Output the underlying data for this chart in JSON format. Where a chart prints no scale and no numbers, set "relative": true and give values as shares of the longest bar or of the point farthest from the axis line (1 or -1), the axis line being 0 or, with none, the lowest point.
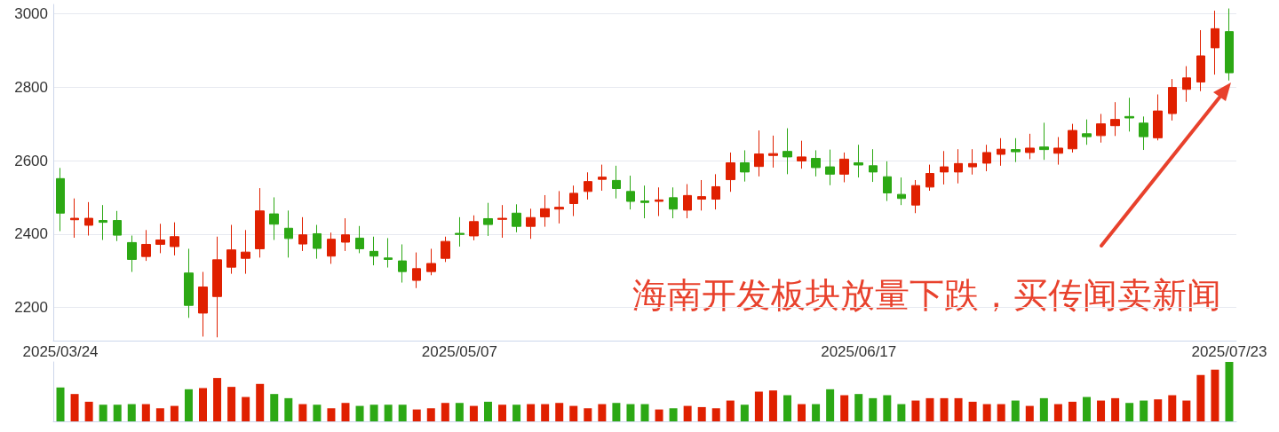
{
  "chart_data": [
    {
      "type": "candlestick",
      "categories": [
        "2025/03/24",
        null,
        null,
        null,
        null,
        null,
        null,
        null,
        null,
        null,
        null,
        null,
        null,
        null,
        null,
        null,
        null,
        null,
        null,
        null,
        null,
        null,
        null,
        null,
        null,
        null,
        null,
        null,
        "2025/05/07",
        null,
        null,
        null,
        null,
        null,
        null,
        null,
        null,
        null,
        null,
        null,
        null,
        null,
        null,
        null,
        null,
        null,
        null,
        null,
        null,
        null,
        null,
        null,
        null,
        null,
        null,
        null,
        "2025/06/17",
        null,
        null,
        null,
        null,
        null,
        null,
        null,
        null,
        null,
        null,
        null,
        null,
        null,
        null,
        null,
        null,
        null,
        null,
        null,
        null,
        null,
        null,
        null,
        null,
        null,
        "2025/07/23"
      ],
      "ohlc": [
        [
          2551,
          2580,
          2408,
          2457
        ],
        [
          2439,
          2497,
          2390,
          2443
        ],
        [
          2424,
          2487,
          2396,
          2443
        ],
        [
          2437,
          2479,
          2384,
          2432
        ],
        [
          2437,
          2463,
          2381,
          2397
        ],
        [
          2377,
          2396,
          2297,
          2331
        ],
        [
          2339,
          2411,
          2327,
          2372
        ],
        [
          2372,
          2428,
          2348,
          2384
        ],
        [
          2366,
          2432,
          2342,
          2393
        ],
        [
          2294,
          2360,
          2172,
          2206
        ],
        [
          2185,
          2297,
          2121,
          2256
        ],
        [
          2230,
          2393,
          2119,
          2330
        ],
        [
          2310,
          2425,
          2292,
          2357
        ],
        [
          2334,
          2411,
          2292,
          2351
        ],
        [
          2360,
          2525,
          2336,
          2463
        ],
        [
          2455,
          2500,
          2384,
          2427
        ],
        [
          2416,
          2464,
          2336,
          2388
        ],
        [
          2373,
          2446,
          2354,
          2398
        ],
        [
          2401,
          2425,
          2333,
          2361
        ],
        [
          2340,
          2404,
          2319,
          2386
        ],
        [
          2378,
          2443,
          2354,
          2398
        ],
        [
          2389,
          2422,
          2348,
          2360
        ],
        [
          2353,
          2393,
          2315,
          2340
        ],
        [
          2335,
          2389,
          2309,
          2331
        ],
        [
          2327,
          2372,
          2268,
          2298
        ],
        [
          2274,
          2350,
          2253,
          2306
        ],
        [
          2298,
          2360,
          2288,
          2320
        ],
        [
          2334,
          2393,
          2324,
          2380
        ],
        [
          2402,
          2446,
          2366,
          2399
        ],
        [
          2395,
          2451,
          2383,
          2434
        ],
        [
          2442,
          2485,
          2395,
          2426
        ],
        [
          2440,
          2479,
          2390,
          2443
        ],
        [
          2457,
          2481,
          2405,
          2421
        ],
        [
          2421,
          2469,
          2387,
          2445
        ],
        [
          2447,
          2506,
          2420,
          2469
        ],
        [
          2468,
          2517,
          2429,
          2473
        ],
        [
          2483,
          2532,
          2449,
          2511
        ],
        [
          2516,
          2568,
          2494,
          2543
        ],
        [
          2549,
          2589,
          2518,
          2555
        ],
        [
          2546,
          2586,
          2497,
          2524
        ],
        [
          2516,
          2559,
          2467,
          2489
        ],
        [
          2490,
          2532,
          2443,
          2486
        ],
        [
          2489,
          2527,
          2449,
          2493
        ],
        [
          2499,
          2527,
          2443,
          2468
        ],
        [
          2465,
          2536,
          2443,
          2505
        ],
        [
          2495,
          2547,
          2464,
          2502
        ],
        [
          2495,
          2563,
          2467,
          2529
        ],
        [
          2548,
          2622,
          2515,
          2594
        ],
        [
          2594,
          2628,
          2543,
          2569
        ],
        [
          2584,
          2682,
          2557,
          2618
        ],
        [
          2614,
          2668,
          2581,
          2619
        ],
        [
          2625,
          2688,
          2563,
          2610
        ],
        [
          2599,
          2654,
          2578,
          2610
        ],
        [
          2606,
          2628,
          2557,
          2581
        ],
        [
          2583,
          2630,
          2533,
          2563
        ],
        [
          2563,
          2622,
          2541,
          2604
        ],
        [
          2594,
          2643,
          2554,
          2588
        ],
        [
          2586,
          2631,
          2542,
          2569
        ],
        [
          2556,
          2598,
          2490,
          2512
        ],
        [
          2508,
          2554,
          2479,
          2497
        ],
        [
          2479,
          2547,
          2457,
          2532
        ],
        [
          2528,
          2589,
          2518,
          2565
        ],
        [
          2569,
          2626,
          2535,
          2583
        ],
        [
          2569,
          2631,
          2538,
          2592
        ],
        [
          2583,
          2631,
          2562,
          2592
        ],
        [
          2593,
          2643,
          2571,
          2622
        ],
        [
          2617,
          2661,
          2586,
          2631
        ],
        [
          2630,
          2661,
          2596,
          2624
        ],
        [
          2622,
          2673,
          2604,
          2634
        ],
        [
          2637,
          2703,
          2602,
          2630
        ],
        [
          2620,
          2664,
          2589,
          2634
        ],
        [
          2632,
          2700,
          2622,
          2682
        ],
        [
          2673,
          2712,
          2643,
          2665
        ],
        [
          2668,
          2727,
          2649,
          2700
        ],
        [
          2695,
          2759,
          2667,
          2712
        ],
        [
          2720,
          2771,
          2679,
          2716
        ],
        [
          2702,
          2720,
          2629,
          2665
        ],
        [
          2662,
          2780,
          2655,
          2735
        ],
        [
          2728,
          2822,
          2709,
          2799
        ],
        [
          2794,
          2857,
          2760,
          2825
        ],
        [
          2814,
          2955,
          2789,
          2885
        ],
        [
          2907,
          3008,
          2834,
          2959
        ],
        [
          2951,
          3014,
          2818,
          2839
        ]
      ],
      "colors": [
        "#2ca814",
        "#e02000",
        "#e02000",
        "#2ca814",
        "#2ca814",
        "#2ca814",
        "#e02000",
        "#e02000",
        "#e02000",
        "#2ca814",
        "#e02000",
        "#e02000",
        "#e02000",
        "#e02000",
        "#e02000",
        "#2ca814",
        "#2ca814",
        "#e02000",
        "#2ca814",
        "#e02000",
        "#e02000",
        "#2ca814",
        "#2ca814",
        "#2ca814",
        "#2ca814",
        "#e02000",
        "#e02000",
        "#e02000",
        "#2ca814",
        "#e02000",
        "#2ca814",
        "#e02000",
        "#2ca814",
        "#e02000",
        "#e02000",
        "#e02000",
        "#e02000",
        "#e02000",
        "#e02000",
        "#2ca814",
        "#2ca814",
        "#2ca814",
        "#e02000",
        "#2ca814",
        "#e02000",
        "#e02000",
        "#e02000",
        "#e02000",
        "#2ca814",
        "#e02000",
        "#e02000",
        "#2ca814",
        "#e02000",
        "#2ca814",
        "#2ca814",
        "#e02000",
        "#2ca814",
        "#2ca814",
        "#2ca814",
        "#2ca814",
        "#e02000",
        "#e02000",
        "#e02000",
        "#e02000",
        "#e02000",
        "#e02000",
        "#e02000",
        "#2ca814",
        "#e02000",
        "#2ca814",
        "#e02000",
        "#e02000",
        "#2ca814",
        "#e02000",
        "#e02000",
        "#2ca814",
        "#2ca814",
        "#e02000",
        "#e02000",
        "#e02000",
        "#e02000",
        "#e02000",
        "#2ca814"
      ],
      "ylim": [
        2110,
        3025
      ],
      "yticks": [
        2200,
        2400,
        2600,
        2800,
        3000
      ],
      "grid": "y",
      "annotations": [
        "海南开发板块放量下跌，买传闻卖新闻"
      ]
    },
    {
      "type": "bar",
      "relative": true,
      "categories": [
        null,
        null,
        null,
        null,
        null,
        null,
        null,
        null,
        null,
        null,
        null,
        null,
        null,
        null,
        null,
        null,
        null,
        null,
        null,
        null,
        null,
        null,
        null,
        null,
        null,
        null,
        null,
        null,
        null,
        null,
        null,
        null,
        null,
        null,
        null,
        null,
        null,
        null,
        null,
        null,
        null,
        null,
        null,
        null,
        null,
        null,
        null,
        null,
        null,
        null,
        null,
        null,
        null,
        null,
        null,
        null,
        null,
        null,
        null,
        null,
        null,
        null,
        null,
        null,
        null,
        null,
        null,
        null,
        null,
        null,
        null,
        null,
        null,
        null,
        null,
        null,
        null,
        null,
        null,
        null,
        null,
        null,
        null
      ],
      "values": [
        0.57,
        0.46,
        0.33,
        0.28,
        0.28,
        0.29,
        0.29,
        0.22,
        0.26,
        0.54,
        0.56,
        0.73,
        0.58,
        0.41,
        0.63,
        0.46,
        0.39,
        0.29,
        0.28,
        0.22,
        0.31,
        0.26,
        0.28,
        0.28,
        0.28,
        0.2,
        0.22,
        0.31,
        0.31,
        0.26,
        0.33,
        0.28,
        0.28,
        0.29,
        0.29,
        0.31,
        0.26,
        0.22,
        0.29,
        0.31,
        0.29,
        0.29,
        0.2,
        0.22,
        0.26,
        0.24,
        0.22,
        0.35,
        0.28,
        0.5,
        0.52,
        0.44,
        0.29,
        0.29,
        0.54,
        0.44,
        0.46,
        0.39,
        0.44,
        0.29,
        0.35,
        0.39,
        0.39,
        0.39,
        0.33,
        0.29,
        0.29,
        0.35,
        0.26,
        0.39,
        0.29,
        0.33,
        0.41,
        0.35,
        0.39,
        0.31,
        0.35,
        0.37,
        0.44,
        0.35,
        0.78,
        0.87,
        1
      ],
      "colors": [
        "#2ca814",
        "#e02000",
        "#e02000",
        "#2ca814",
        "#2ca814",
        "#2ca814",
        "#e02000",
        "#e02000",
        "#e02000",
        "#2ca814",
        "#e02000",
        "#e02000",
        "#e02000",
        "#e02000",
        "#e02000",
        "#2ca814",
        "#2ca814",
        "#e02000",
        "#2ca814",
        "#e02000",
        "#e02000",
        "#2ca814",
        "#2ca814",
        "#2ca814",
        "#2ca814",
        "#e02000",
        "#e02000",
        "#e02000",
        "#2ca814",
        "#e02000",
        "#2ca814",
        "#e02000",
        "#2ca814",
        "#e02000",
        "#e02000",
        "#e02000",
        "#e02000",
        "#e02000",
        "#e02000",
        "#2ca814",
        "#2ca814",
        "#2ca814",
        "#e02000",
        "#2ca814",
        "#e02000",
        "#e02000",
        "#e02000",
        "#e02000",
        "#2ca814",
        "#e02000",
        "#e02000",
        "#2ca814",
        "#e02000",
        "#2ca814",
        "#2ca814",
        "#e02000",
        "#2ca814",
        "#2ca814",
        "#2ca814",
        "#2ca814",
        "#e02000",
        "#e02000",
        "#e02000",
        "#e02000",
        "#e02000",
        "#e02000",
        "#e02000",
        "#2ca814",
        "#e02000",
        "#2ca814",
        "#e02000",
        "#e02000",
        "#2ca814",
        "#e02000",
        "#e02000",
        "#2ca814",
        "#2ca814",
        "#e02000",
        "#e02000",
        "#e02000",
        "#e02000",
        "#e02000",
        "#2ca814"
      ]
    }
  ]
}
